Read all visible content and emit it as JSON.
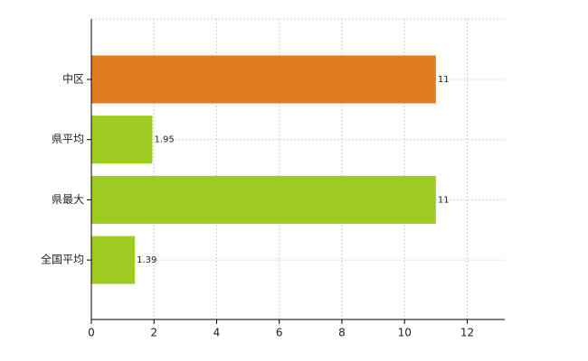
{
  "chart_data": {
    "type": "bar",
    "orientation": "horizontal",
    "categories": [
      "中区",
      "県平均",
      "県最大",
      "全国平均"
    ],
    "values": [
      11,
      1.95,
      11,
      1.39
    ],
    "colors": [
      "#e07b20",
      "#9dcb1f",
      "#9dcb1f",
      "#9dcb1f"
    ],
    "xlim": [
      0,
      13.2
    ],
    "xticks": [
      0,
      2,
      4,
      6,
      8,
      10,
      12
    ],
    "grid": true
  }
}
